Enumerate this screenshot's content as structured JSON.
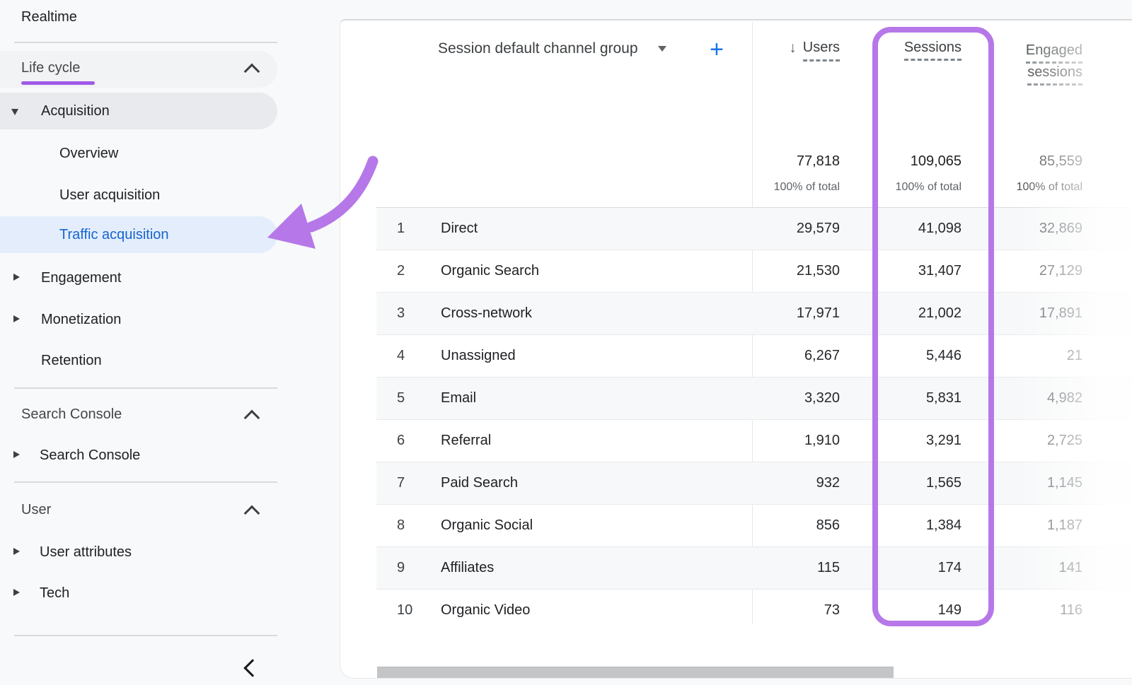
{
  "sidebar": {
    "realtime": "Realtime",
    "lifecycle_header": "Life cycle",
    "acquisition": "Acquisition",
    "overview": "Overview",
    "user_acquisition": "User acquisition",
    "traffic_acquisition": "Traffic acquisition",
    "engagement": "Engagement",
    "monetization": "Monetization",
    "retention": "Retention",
    "search_console_header": "Search Console",
    "search_console_item": "Search Console",
    "user_header": "User",
    "user_attributes": "User attributes",
    "tech": "Tech"
  },
  "table": {
    "dimension_header": "Session default channel group",
    "add_label": "+",
    "sort_arrow": "↓",
    "columns": {
      "users": "Users",
      "sessions": "Sessions",
      "engaged": "Engaged sessions"
    },
    "totals": {
      "users": "77,818",
      "sessions": "109,065",
      "engaged": "85,559",
      "subtext": "100% of total"
    },
    "rows": [
      {
        "rank": "1",
        "channel": "Direct",
        "users": "29,579",
        "sessions": "41,098",
        "engaged": "32,869"
      },
      {
        "rank": "2",
        "channel": "Organic Search",
        "users": "21,530",
        "sessions": "31,407",
        "engaged": "27,129"
      },
      {
        "rank": "3",
        "channel": "Cross-network",
        "users": "17,971",
        "sessions": "21,002",
        "engaged": "17,891"
      },
      {
        "rank": "4",
        "channel": "Unassigned",
        "users": "6,267",
        "sessions": "5,446",
        "engaged": "21"
      },
      {
        "rank": "5",
        "channel": "Email",
        "users": "3,320",
        "sessions": "5,831",
        "engaged": "4,982"
      },
      {
        "rank": "6",
        "channel": "Referral",
        "users": "1,910",
        "sessions": "3,291",
        "engaged": "2,725"
      },
      {
        "rank": "7",
        "channel": "Paid Search",
        "users": "932",
        "sessions": "1,565",
        "engaged": "1,145"
      },
      {
        "rank": "8",
        "channel": "Organic Social",
        "users": "856",
        "sessions": "1,384",
        "engaged": "1,187"
      },
      {
        "rank": "9",
        "channel": "Affiliates",
        "users": "115",
        "sessions": "174",
        "engaged": "141"
      },
      {
        "rank": "10",
        "channel": "Organic Video",
        "users": "73",
        "sessions": "149",
        "engaged": "116"
      }
    ]
  },
  "colors": {
    "annotation_purple": "#b678e8",
    "underline_purple": "#a159e8",
    "link_blue": "#1a73e8",
    "selected_item_text": "#1765cf",
    "selected_item_bg": "#e3edfc",
    "page_background": "#f8f9fa"
  }
}
